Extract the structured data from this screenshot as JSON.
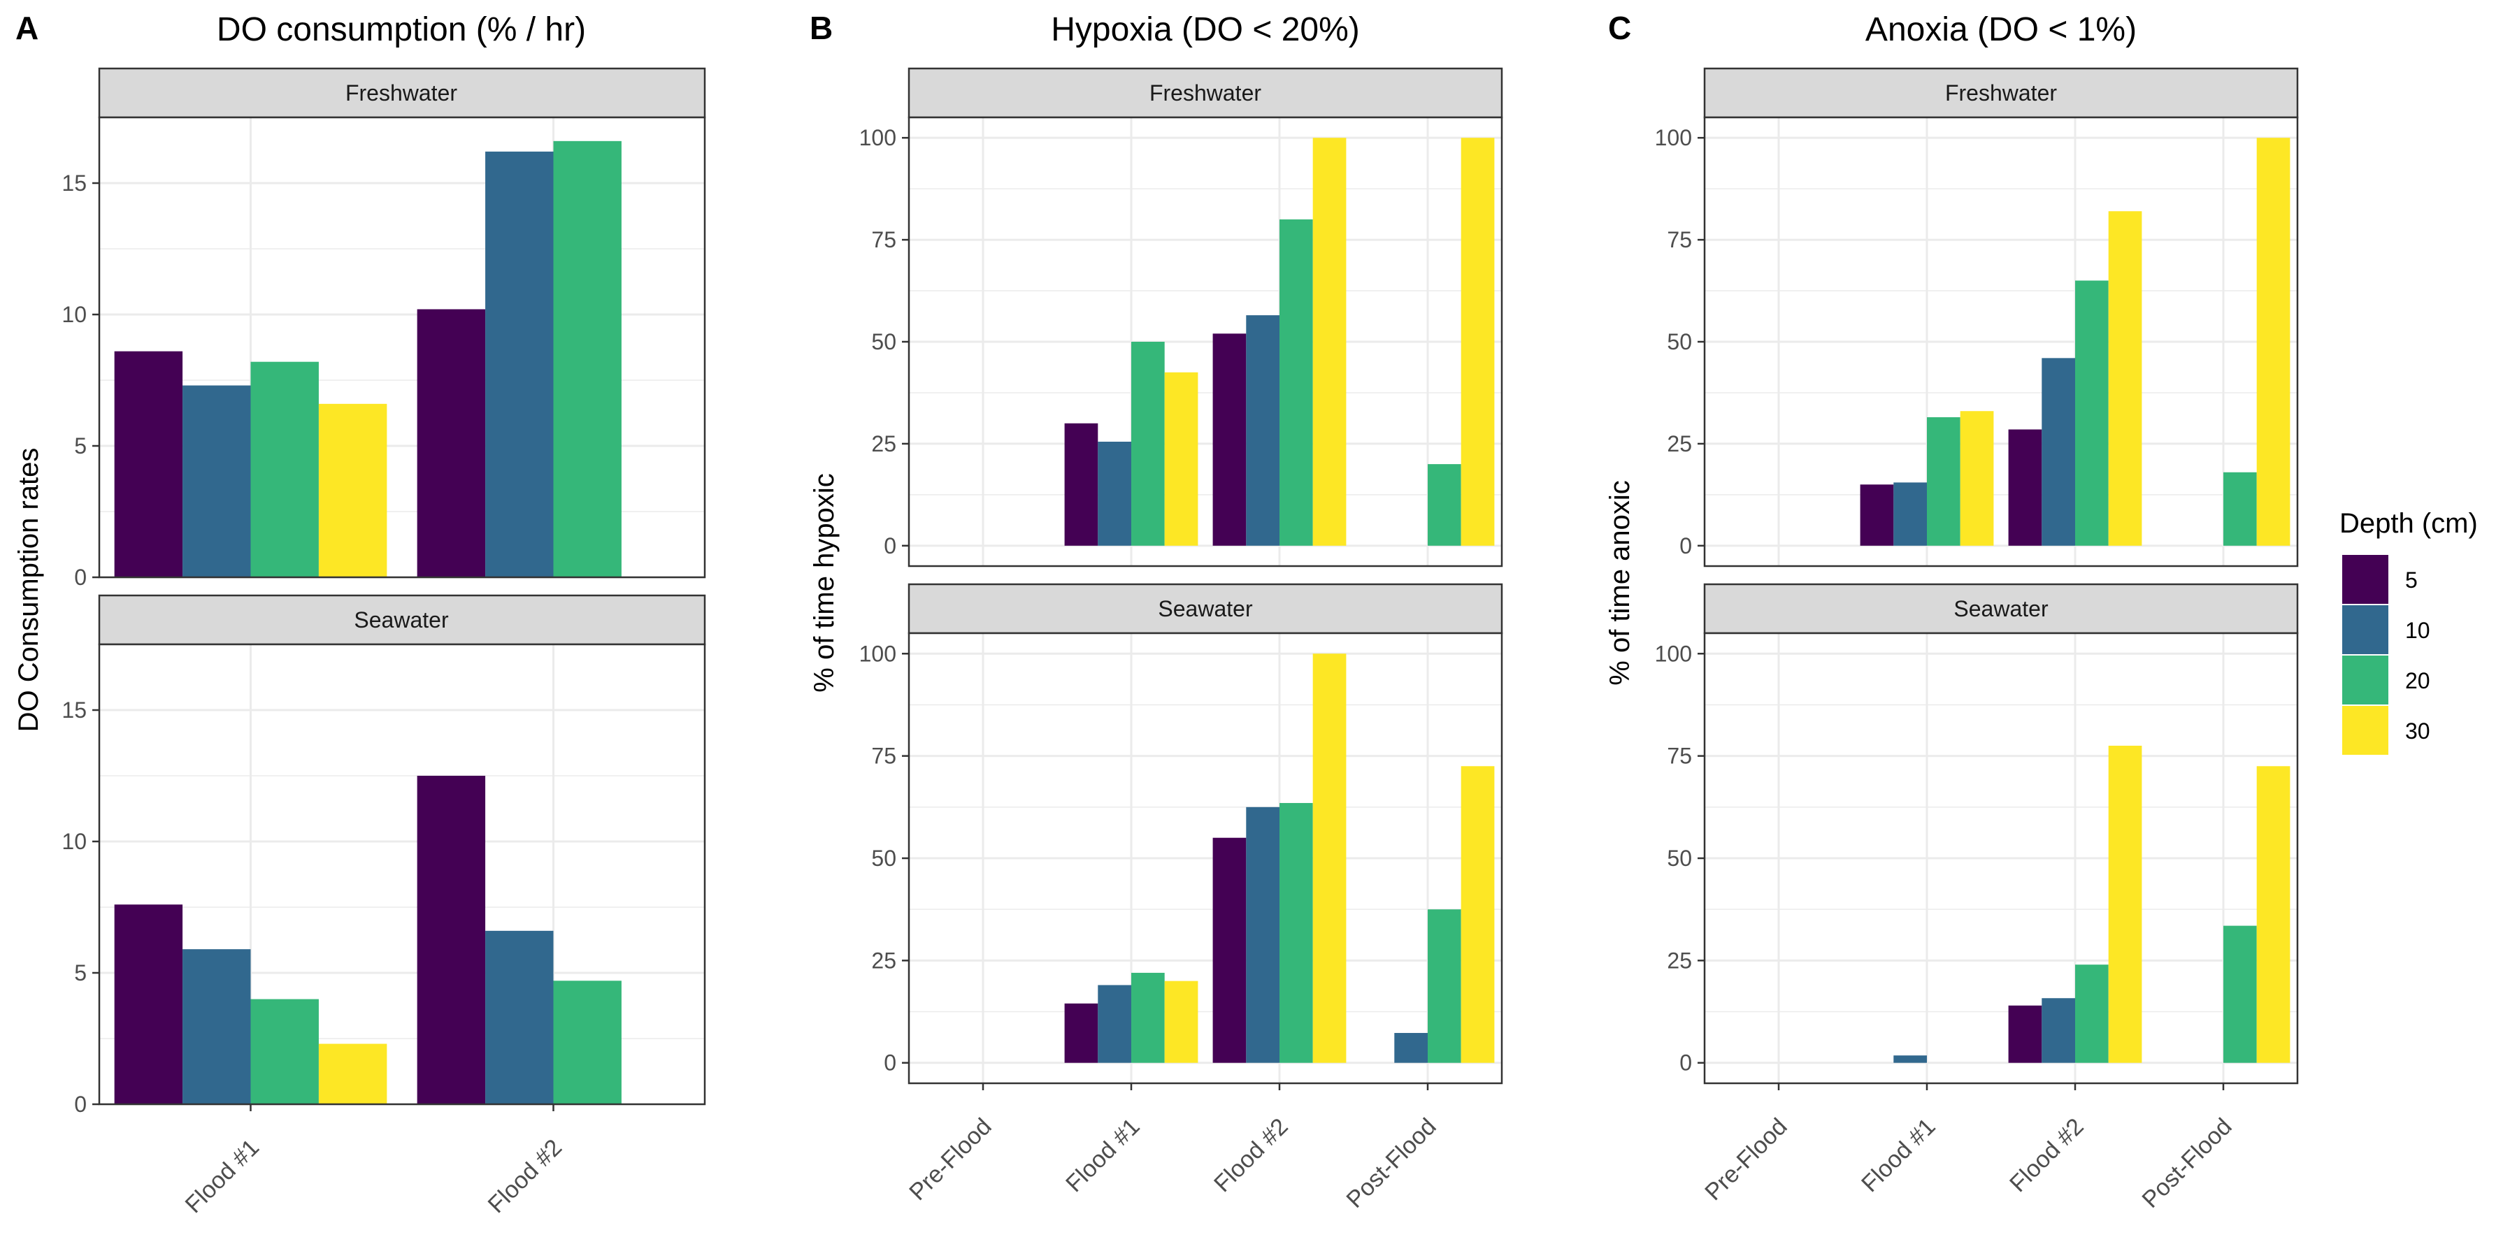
{
  "colors": {
    "depth_5": "#440154",
    "depth_10": "#31688E",
    "depth_20": "#35B779",
    "depth_30": "#FDE725",
    "strip_fill": "#D9D9D9",
    "grid": "#EBEBEB",
    "axis_text": "#4D4D4D"
  },
  "legend": {
    "title": "Depth (cm)",
    "position": "right",
    "labels": [
      "5",
      "10",
      "20",
      "30"
    ]
  },
  "chart_data": [
    {
      "panel_label": "A",
      "type": "bar",
      "title": "DO consumption (% / hr)",
      "ylabel": "DO Consumption rates",
      "xlabel": "",
      "categories": [
        "Flood #1",
        "Flood #2"
      ],
      "ylim": [
        0,
        17.5
      ],
      "yticks": [
        0,
        5,
        10,
        15
      ],
      "grid": true,
      "facets": [
        {
          "strip": "Freshwater",
          "series": [
            {
              "name": "5",
              "values": [
                8.6,
                10.2
              ]
            },
            {
              "name": "10",
              "values": [
                7.3,
                16.2
              ]
            },
            {
              "name": "20",
              "values": [
                8.2,
                16.6
              ]
            },
            {
              "name": "30",
              "values": [
                6.6,
                null
              ]
            }
          ]
        },
        {
          "strip": "Seawater",
          "series": [
            {
              "name": "5",
              "values": [
                7.6,
                12.5
              ]
            },
            {
              "name": "10",
              "values": [
                5.9,
                6.6
              ]
            },
            {
              "name": "20",
              "values": [
                4.0,
                4.7
              ]
            },
            {
              "name": "30",
              "values": [
                2.3,
                null
              ]
            }
          ]
        }
      ]
    },
    {
      "panel_label": "B",
      "type": "bar",
      "title": "Hypoxia (DO < 20%)",
      "ylabel": "% of time hypoxic",
      "xlabel": "",
      "categories": [
        "Pre-Flood",
        "Flood #1",
        "Flood #2",
        "Post-Flood"
      ],
      "ylim": [
        -5,
        105
      ],
      "yticks": [
        0,
        25,
        50,
        75,
        100
      ],
      "grid": true,
      "facets": [
        {
          "strip": "Freshwater",
          "series": [
            {
              "name": "5",
              "values": [
                null,
                30,
                52,
                null
              ]
            },
            {
              "name": "10",
              "values": [
                null,
                25.5,
                56.5,
                null
              ]
            },
            {
              "name": "20",
              "values": [
                null,
                50,
                80,
                20
              ]
            },
            {
              "name": "30",
              "values": [
                null,
                42.5,
                100,
                100
              ]
            }
          ]
        },
        {
          "strip": "Seawater",
          "series": [
            {
              "name": "5",
              "values": [
                null,
                14.5,
                55,
                null
              ]
            },
            {
              "name": "10",
              "values": [
                null,
                19,
                62.5,
                7.3
              ]
            },
            {
              "name": "20",
              "values": [
                null,
                22,
                63.5,
                37.5
              ]
            },
            {
              "name": "30",
              "values": [
                null,
                20,
                100,
                72.5
              ]
            }
          ]
        }
      ]
    },
    {
      "panel_label": "C",
      "type": "bar",
      "title": "Anoxia (DO < 1%)",
      "ylabel": "% of time anoxic",
      "xlabel": "",
      "categories": [
        "Pre-Flood",
        "Flood #1",
        "Flood #2",
        "Post-Flood"
      ],
      "ylim": [
        -5,
        105
      ],
      "yticks": [
        0,
        25,
        50,
        75,
        100
      ],
      "grid": true,
      "facets": [
        {
          "strip": "Freshwater",
          "series": [
            {
              "name": "5",
              "values": [
                null,
                15,
                28.5,
                null
              ]
            },
            {
              "name": "10",
              "values": [
                null,
                15.5,
                46,
                null
              ]
            },
            {
              "name": "20",
              "values": [
                null,
                31.5,
                65,
                18
              ]
            },
            {
              "name": "30",
              "values": [
                null,
                33,
                82,
                100
              ]
            }
          ]
        },
        {
          "strip": "Seawater",
          "series": [
            {
              "name": "5",
              "values": [
                null,
                null,
                14,
                null
              ]
            },
            {
              "name": "10",
              "values": [
                null,
                1.8,
                15.8,
                null
              ]
            },
            {
              "name": "20",
              "values": [
                null,
                null,
                24,
                33.5
              ]
            },
            {
              "name": "30",
              "values": [
                null,
                null,
                77.5,
                72.5
              ]
            }
          ]
        }
      ]
    }
  ]
}
